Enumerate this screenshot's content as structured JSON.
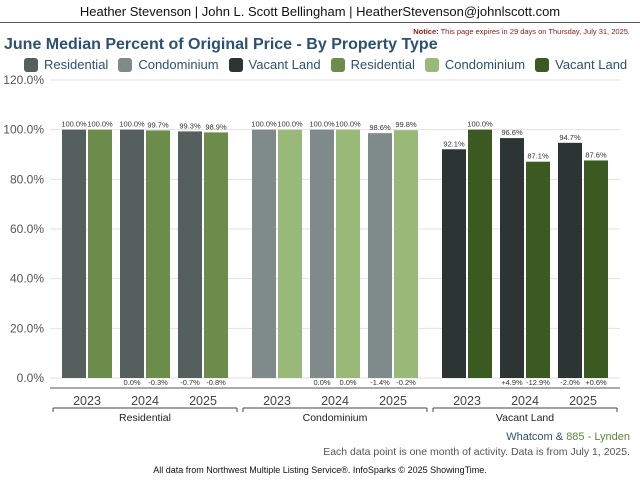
{
  "header": {
    "agents": "Heather Stevenson | John L. Scott Bellingham | HeatherStevenson@johnlscott.com"
  },
  "notice": {
    "label": "Notice:",
    "text": "This page expires in 29 days on Thursday, July 31, 2025."
  },
  "title": "June Median Percent of Original Price - By Property Type",
  "legend": [
    {
      "label": "Residential",
      "color": "#555f5e"
    },
    {
      "label": "Condominium",
      "color": "#7f8b8a"
    },
    {
      "label": "Vacant Land",
      "color": "#2c3534"
    },
    {
      "label": "Residential",
      "color": "#6b8c4a"
    },
    {
      "label": "Condominium",
      "color": "#98b978"
    },
    {
      "label": "Vacant Land",
      "color": "#3b5a22"
    }
  ],
  "chart_data": {
    "type": "bar",
    "title": "June Median Percent of Original Price - By Property Type",
    "ylim": [
      0,
      120
    ],
    "y_ticks": [
      "0.0%",
      "20.0%",
      "40.0%",
      "60.0%",
      "80.0%",
      "100.0%",
      "120.0%"
    ],
    "grid": true,
    "legend_position": "top",
    "groups": [
      {
        "name": "Residential",
        "years": [
          "2023",
          "2024",
          "2025"
        ],
        "series": [
          {
            "name": "Residential",
            "location": "Whatcom",
            "color": "#555f5e",
            "values": [
              100.0,
              100.0,
              99.3
            ],
            "labels": [
              "100.0%",
              "100.0%",
              "99.3%"
            ]
          },
          {
            "name": "Residential",
            "location": "885 - Lynden",
            "color": "#6b8c4a",
            "values": [
              100.0,
              99.7,
              98.9
            ],
            "labels": [
              "100.0%",
              "99.7%",
              "98.9%"
            ]
          }
        ],
        "changes": [
          [
            "",
            ""
          ],
          [
            "0.0%",
            "-0.3%"
          ],
          [
            "-0.7%",
            "-0.8%"
          ]
        ]
      },
      {
        "name": "Condominium",
        "years": [
          "2023",
          "2024",
          "2025"
        ],
        "series": [
          {
            "name": "Condominium",
            "location": "Whatcom",
            "color": "#7f8b8a",
            "values": [
              100.0,
              100.0,
              98.6
            ],
            "labels": [
              "100.0%",
              "100.0%",
              "98.6%"
            ]
          },
          {
            "name": "Condominium",
            "location": "885 - Lynden",
            "color": "#98b978",
            "values": [
              100.0,
              100.0,
              99.8
            ],
            "labels": [
              "100.0%",
              "100.0%",
              "99.8%"
            ]
          }
        ],
        "changes": [
          [
            "",
            ""
          ],
          [
            "0.0%",
            "0.0%"
          ],
          [
            "-1.4%",
            "-0.2%"
          ]
        ]
      },
      {
        "name": "Vacant Land",
        "years": [
          "2023",
          "2024",
          "2025"
        ],
        "series": [
          {
            "name": "Vacant Land",
            "location": "Whatcom",
            "color": "#2c3534",
            "values": [
              92.1,
              96.6,
              94.7
            ],
            "labels": [
              "92.1%",
              "96.6%",
              "94.7%"
            ]
          },
          {
            "name": "Vacant Land",
            "location": "885 - Lynden",
            "color": "#3b5a22",
            "values": [
              100.0,
              87.1,
              87.6
            ],
            "labels": [
              "100.0%",
              "87.1%",
              "87.6%"
            ]
          }
        ],
        "changes": [
          [
            "",
            ""
          ],
          [
            "+4.9%",
            "-12.9%"
          ],
          [
            "-2.0%",
            "+0.6%"
          ]
        ]
      }
    ]
  },
  "footer": {
    "location_1": "Whatcom",
    "ampersand": "&",
    "location_2": "885 - Lynden",
    "note": "Each data point is one month of activity. Data is from July 1, 2025.",
    "credit": "All data from Northwest Multiple Listing Service®. InfoSparks © 2025 ShowingTime."
  }
}
